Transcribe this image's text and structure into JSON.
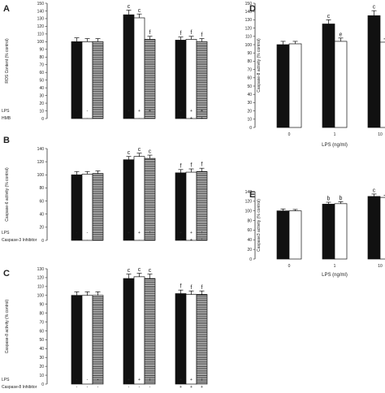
{
  "chart_data": [
    {
      "panel": "A",
      "type": "bar",
      "ylabel": "ROS Content (% control)",
      "ylim": [
        0,
        150
      ],
      "ticks": [
        0,
        10,
        20,
        30,
        40,
        50,
        60,
        70,
        80,
        90,
        100,
        110,
        120,
        130,
        140,
        150
      ],
      "groups": [
        {
          "bars": [
            {
              "v": 100,
              "e": 5,
              "fill": "black"
            },
            {
              "v": 100,
              "e": 4,
              "fill": "white"
            },
            {
              "v": 100,
              "e": 4,
              "fill": "striped"
            }
          ],
          "sig": [
            "",
            "",
            ""
          ]
        },
        {
          "bars": [
            {
              "v": 135,
              "e": 6,
              "fill": "black"
            },
            {
              "v": 131,
              "e": 5,
              "fill": "white"
            },
            {
              "v": 103,
              "e": 4,
              "fill": "striped"
            }
          ],
          "sig": [
            "c",
            "c",
            "f"
          ]
        },
        {
          "bars": [
            {
              "v": 102,
              "e": 4,
              "fill": "black"
            },
            {
              "v": 103,
              "e": 4,
              "fill": "white"
            },
            {
              "v": 100,
              "e": 4,
              "fill": "striped"
            }
          ],
          "sig": [
            "f",
            "f",
            "f"
          ]
        }
      ],
      "conditions": [
        {
          "label": "LPS",
          "signs": [
            "-",
            "-",
            "-",
            "+",
            "+",
            "+",
            "+",
            "+",
            "+"
          ]
        },
        {
          "label": "HMB",
          "signs": [
            "-",
            "-",
            "-",
            "-",
            "-",
            "-",
            "+",
            "+",
            "+"
          ]
        }
      ]
    },
    {
      "panel": "B",
      "type": "bar",
      "ylabel": "Caspase-6 activity (% control)",
      "ylim": [
        0,
        140
      ],
      "ticks": [
        0,
        20,
        40,
        60,
        80,
        100,
        120,
        140
      ],
      "groups": [
        {
          "bars": [
            {
              "v": 100,
              "e": 5,
              "fill": "black"
            },
            {
              "v": 101,
              "e": 4,
              "fill": "white"
            },
            {
              "v": 102,
              "e": 4,
              "fill": "striped"
            }
          ],
          "sig": [
            "",
            "",
            ""
          ]
        },
        {
          "bars": [
            {
              "v": 123,
              "e": 5,
              "fill": "black"
            },
            {
              "v": 128,
              "e": 5,
              "fill": "white"
            },
            {
              "v": 125,
              "e": 5,
              "fill": "striped"
            }
          ],
          "sig": [
            "c",
            "c",
            "c"
          ]
        },
        {
          "bars": [
            {
              "v": 103,
              "e": 5,
              "fill": "black"
            },
            {
              "v": 104,
              "e": 5,
              "fill": "white"
            },
            {
              "v": 105,
              "e": 5,
              "fill": "striped"
            }
          ],
          "sig": [
            "f",
            "f",
            "f"
          ]
        }
      ],
      "conditions": [
        {
          "label": "LPS",
          "signs": [
            "-",
            "-",
            "-",
            "+",
            "+",
            "+",
            "+",
            "+",
            "+"
          ]
        },
        {
          "label": "Caspase-3 Inhibitor",
          "signs": [
            "-",
            "-",
            "-",
            "-",
            "-",
            "-",
            "+",
            "+",
            "+"
          ]
        }
      ]
    },
    {
      "panel": "C",
      "type": "bar",
      "ylabel": "Caspase-8 activity (% control)",
      "ylim": [
        0,
        130
      ],
      "ticks": [
        0,
        10,
        20,
        30,
        40,
        50,
        60,
        70,
        80,
        90,
        100,
        110,
        120,
        130
      ],
      "groups": [
        {
          "bars": [
            {
              "v": 100,
              "e": 4,
              "fill": "black"
            },
            {
              "v": 100,
              "e": 4,
              "fill": "white"
            },
            {
              "v": 100,
              "e": 4,
              "fill": "striped"
            }
          ],
          "sig": [
            "",
            "",
            ""
          ]
        },
        {
          "bars": [
            {
              "v": 119,
              "e": 5,
              "fill": "black"
            },
            {
              "v": 121,
              "e": 4,
              "fill": "white"
            },
            {
              "v": 119,
              "e": 5,
              "fill": "striped"
            }
          ],
          "sig": [
            "c",
            "c",
            "c"
          ]
        },
        {
          "bars": [
            {
              "v": 102,
              "e": 4,
              "fill": "black"
            },
            {
              "v": 101,
              "e": 4,
              "fill": "white"
            },
            {
              "v": 101,
              "e": 4,
              "fill": "striped"
            }
          ],
          "sig": [
            "f",
            "f",
            "f"
          ]
        }
      ],
      "conditions": [
        {
          "label": "LPS",
          "signs": [
            "-",
            "-",
            "-",
            "+",
            "+",
            "+",
            "+",
            "+",
            "+"
          ]
        },
        {
          "label": "Caspase-8 Inhibitor",
          "signs": [
            "-",
            "-",
            "-",
            "-",
            "-",
            "-",
            "+",
            "+",
            "+"
          ]
        }
      ]
    },
    {
      "panel": "D",
      "type": "bar",
      "ylabel": "Caspase-8 activity (% control)",
      "xlabel": "LPS (ng/ml)",
      "ylim": [
        0,
        150
      ],
      "ticks": [
        0,
        10,
        20,
        30,
        40,
        50,
        60,
        70,
        80,
        90,
        100,
        110,
        120,
        130,
        140,
        150
      ],
      "categories": [
        "0",
        "1",
        "10"
      ],
      "groups": [
        {
          "bars": [
            {
              "v": 100,
              "e": 4,
              "fill": "black"
            },
            {
              "v": 101,
              "e": 3,
              "fill": "white"
            }
          ],
          "sig": [
            "",
            ""
          ]
        },
        {
          "bars": [
            {
              "v": 125,
              "e": 5,
              "fill": "black"
            },
            {
              "v": 104,
              "e": 4,
              "fill": "white"
            }
          ],
          "sig": [
            "c",
            "e"
          ]
        },
        {
          "bars": [
            {
              "v": 135,
              "e": 6,
              "fill": "black"
            },
            {
              "v": 103,
              "e": 4,
              "fill": "white"
            }
          ],
          "sig": [
            "c",
            "f"
          ]
        }
      ]
    },
    {
      "panel": "E",
      "type": "bar",
      "ylabel": "Caspase3 activity (% control)",
      "xlabel": "LPS (ng/ml)",
      "ylim": [
        0,
        140
      ],
      "ticks": [
        0,
        20,
        40,
        60,
        80,
        100,
        120,
        140
      ],
      "categories": [
        "0",
        "1",
        "10"
      ],
      "groups": [
        {
          "bars": [
            {
              "v": 100,
              "e": 4,
              "fill": "black"
            },
            {
              "v": 100,
              "e": 3,
              "fill": "white"
            }
          ],
          "sig": [
            "",
            ""
          ]
        },
        {
          "bars": [
            {
              "v": 114,
              "e": 4,
              "fill": "black"
            },
            {
              "v": 115,
              "e": 4,
              "fill": "white"
            }
          ],
          "sig": [
            "b",
            "b"
          ]
        },
        {
          "bars": [
            {
              "v": 130,
              "e": 5,
              "fill": "black"
            },
            {
              "v": 128,
              "e": 4,
              "fill": "white"
            }
          ],
          "sig": [
            "c",
            "c"
          ]
        }
      ]
    }
  ]
}
